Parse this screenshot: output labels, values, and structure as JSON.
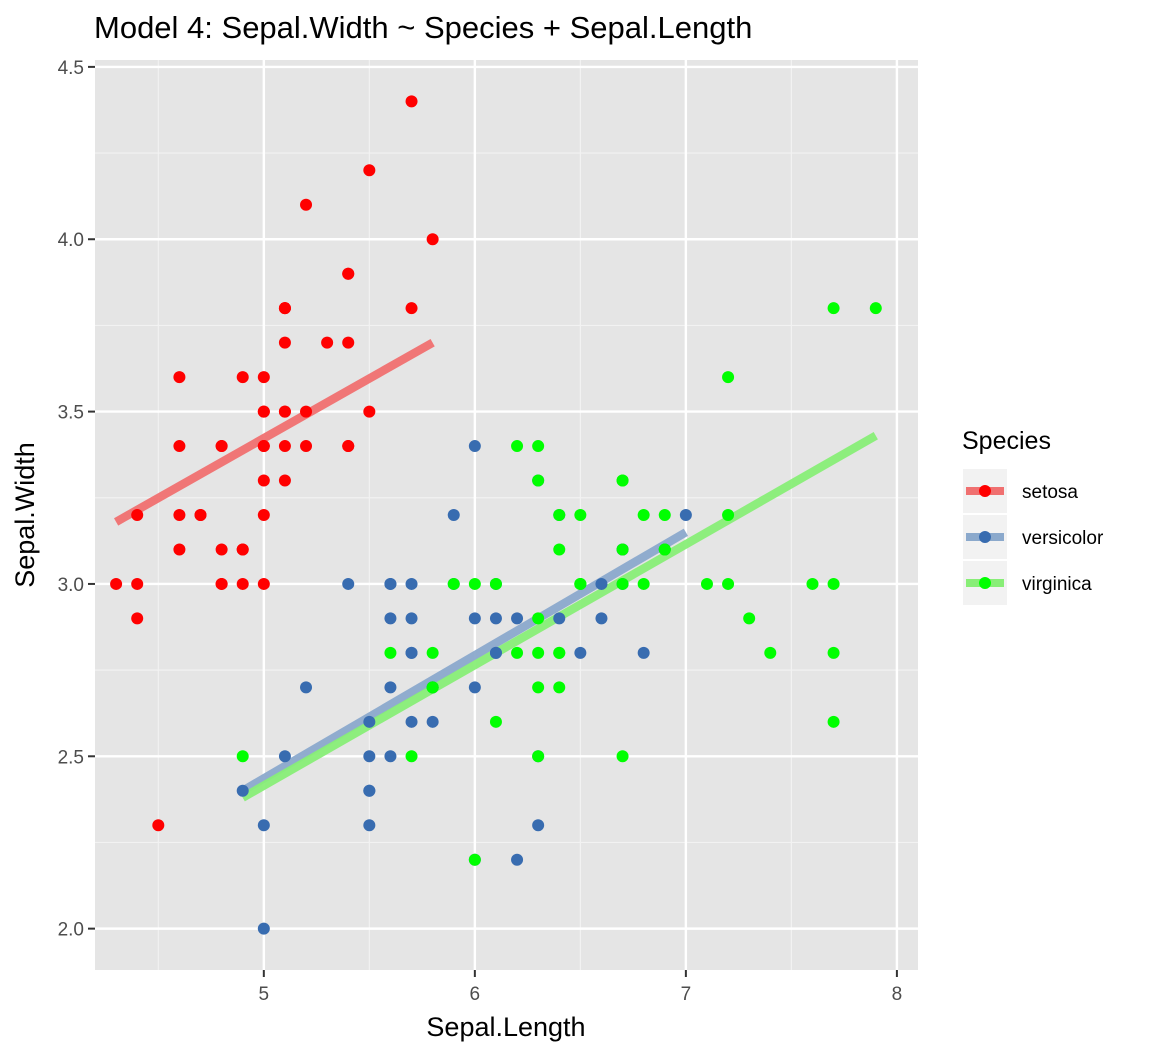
{
  "chart_data": {
    "type": "scatter",
    "title": "Model 4: Sepal.Width ~ Species + Sepal.Length",
    "xlabel": "Sepal.Length",
    "ylabel": "Sepal.Width",
    "xlim": [
      4.2,
      8.1
    ],
    "ylim": [
      1.88,
      4.52
    ],
    "x_ticks": [
      5,
      6,
      7,
      8
    ],
    "y_ticks": [
      2.0,
      2.5,
      3.0,
      3.5,
      4.0,
      4.5
    ],
    "x_tick_labels": [
      "5",
      "6",
      "7",
      "8"
    ],
    "y_tick_labels": [
      "2.0",
      "2.5",
      "3.0",
      "3.5",
      "4.0",
      "4.5"
    ],
    "grid": true,
    "legend": {
      "title": "Species",
      "position": "right"
    },
    "series": [
      {
        "name": "setosa",
        "color": "#ff0000",
        "line_color": "#f07070",
        "fit_line": [
          [
            4.3,
            3.18
          ],
          [
            5.8,
            3.7
          ]
        ],
        "points": [
          [
            5.1,
            3.5
          ],
          [
            4.9,
            3.0
          ],
          [
            4.7,
            3.2
          ],
          [
            4.6,
            3.1
          ],
          [
            5.0,
            3.6
          ],
          [
            5.4,
            3.9
          ],
          [
            4.6,
            3.4
          ],
          [
            5.0,
            3.4
          ],
          [
            4.4,
            2.9
          ],
          [
            4.9,
            3.1
          ],
          [
            5.4,
            3.7
          ],
          [
            4.8,
            3.4
          ],
          [
            4.8,
            3.0
          ],
          [
            4.3,
            3.0
          ],
          [
            5.8,
            4.0
          ],
          [
            5.7,
            4.4
          ],
          [
            5.4,
            3.9
          ],
          [
            5.1,
            3.5
          ],
          [
            5.7,
            3.8
          ],
          [
            5.1,
            3.8
          ],
          [
            5.4,
            3.4
          ],
          [
            5.1,
            3.7
          ],
          [
            4.6,
            3.6
          ],
          [
            5.1,
            3.3
          ],
          [
            4.8,
            3.4
          ],
          [
            5.0,
            3.0
          ],
          [
            5.0,
            3.4
          ],
          [
            5.2,
            3.5
          ],
          [
            5.2,
            3.4
          ],
          [
            4.7,
            3.2
          ],
          [
            4.8,
            3.1
          ],
          [
            5.4,
            3.4
          ],
          [
            5.2,
            4.1
          ],
          [
            5.5,
            4.2
          ],
          [
            4.9,
            3.1
          ],
          [
            5.0,
            3.2
          ],
          [
            5.5,
            3.5
          ],
          [
            4.9,
            3.6
          ],
          [
            4.4,
            3.0
          ],
          [
            5.1,
            3.4
          ],
          [
            5.0,
            3.5
          ],
          [
            4.5,
            2.3
          ],
          [
            4.4,
            3.2
          ],
          [
            5.0,
            3.5
          ],
          [
            5.1,
            3.8
          ],
          [
            4.8,
            3.0
          ],
          [
            5.1,
            3.8
          ],
          [
            4.6,
            3.2
          ],
          [
            5.3,
            3.7
          ],
          [
            5.0,
            3.3
          ]
        ]
      },
      {
        "name": "versicolor",
        "color": "#386cb0",
        "line_color": "#8ba9cc",
        "fit_line": [
          [
            4.9,
            2.4
          ],
          [
            7.0,
            3.15
          ]
        ],
        "points": [
          [
            7.0,
            3.2
          ],
          [
            6.4,
            3.2
          ],
          [
            6.9,
            3.1
          ],
          [
            5.5,
            2.3
          ],
          [
            6.5,
            2.8
          ],
          [
            5.7,
            2.8
          ],
          [
            6.3,
            3.3
          ],
          [
            4.9,
            2.4
          ],
          [
            6.6,
            2.9
          ],
          [
            5.2,
            2.7
          ],
          [
            5.0,
            2.0
          ],
          [
            5.9,
            3.0
          ],
          [
            6.0,
            2.2
          ],
          [
            6.1,
            2.9
          ],
          [
            5.6,
            2.9
          ],
          [
            6.7,
            3.1
          ],
          [
            5.6,
            3.0
          ],
          [
            5.8,
            2.7
          ],
          [
            6.2,
            2.2
          ],
          [
            5.6,
            2.5
          ],
          [
            5.9,
            3.2
          ],
          [
            6.1,
            2.8
          ],
          [
            6.3,
            2.5
          ],
          [
            6.1,
            2.8
          ],
          [
            6.4,
            2.9
          ],
          [
            6.6,
            3.0
          ],
          [
            6.8,
            2.8
          ],
          [
            6.7,
            3.0
          ],
          [
            6.0,
            2.9
          ],
          [
            5.7,
            2.6
          ],
          [
            5.5,
            2.4
          ],
          [
            5.5,
            2.4
          ],
          [
            5.8,
            2.7
          ],
          [
            6.0,
            2.7
          ],
          [
            5.4,
            3.0
          ],
          [
            6.0,
            3.4
          ],
          [
            6.7,
            3.1
          ],
          [
            6.3,
            2.3
          ],
          [
            5.6,
            3.0
          ],
          [
            5.5,
            2.5
          ],
          [
            5.5,
            2.6
          ],
          [
            6.1,
            3.0
          ],
          [
            5.8,
            2.6
          ],
          [
            5.0,
            2.3
          ],
          [
            5.6,
            2.7
          ],
          [
            5.7,
            3.0
          ],
          [
            5.7,
            2.9
          ],
          [
            6.2,
            2.9
          ],
          [
            5.1,
            2.5
          ],
          [
            5.7,
            2.8
          ]
        ]
      },
      {
        "name": "virginica",
        "color": "#00ff00",
        "line_color": "#88ee77",
        "fit_line": [
          [
            4.9,
            2.38
          ],
          [
            7.9,
            3.43
          ]
        ],
        "points": [
          [
            6.3,
            3.3
          ],
          [
            5.8,
            2.7
          ],
          [
            7.1,
            3.0
          ],
          [
            6.3,
            2.9
          ],
          [
            6.5,
            3.0
          ],
          [
            7.6,
            3.0
          ],
          [
            4.9,
            2.5
          ],
          [
            7.3,
            2.9
          ],
          [
            6.7,
            2.5
          ],
          [
            7.2,
            3.6
          ],
          [
            6.5,
            3.2
          ],
          [
            6.4,
            2.7
          ],
          [
            6.8,
            3.0
          ],
          [
            5.7,
            2.5
          ],
          [
            5.8,
            2.8
          ],
          [
            6.4,
            3.2
          ],
          [
            6.5,
            3.0
          ],
          [
            7.7,
            3.8
          ],
          [
            7.7,
            2.6
          ],
          [
            6.0,
            2.2
          ],
          [
            6.9,
            3.2
          ],
          [
            5.6,
            2.8
          ],
          [
            7.7,
            2.8
          ],
          [
            6.3,
            2.7
          ],
          [
            6.7,
            3.3
          ],
          [
            7.2,
            3.2
          ],
          [
            6.2,
            2.8
          ],
          [
            6.1,
            3.0
          ],
          [
            6.4,
            2.8
          ],
          [
            7.2,
            3.0
          ],
          [
            7.4,
            2.8
          ],
          [
            7.9,
            3.8
          ],
          [
            6.4,
            2.8
          ],
          [
            6.3,
            2.8
          ],
          [
            6.1,
            2.6
          ],
          [
            7.7,
            3.0
          ],
          [
            6.3,
            3.4
          ],
          [
            6.4,
            3.1
          ],
          [
            6.0,
            3.0
          ],
          [
            6.9,
            3.1
          ],
          [
            6.7,
            3.1
          ],
          [
            6.9,
            3.1
          ],
          [
            5.8,
            2.7
          ],
          [
            6.8,
            3.2
          ],
          [
            6.7,
            3.3
          ],
          [
            6.7,
            3.0
          ],
          [
            6.3,
            2.5
          ],
          [
            6.5,
            3.0
          ],
          [
            6.2,
            3.4
          ],
          [
            5.9,
            3.0
          ]
        ]
      }
    ]
  }
}
